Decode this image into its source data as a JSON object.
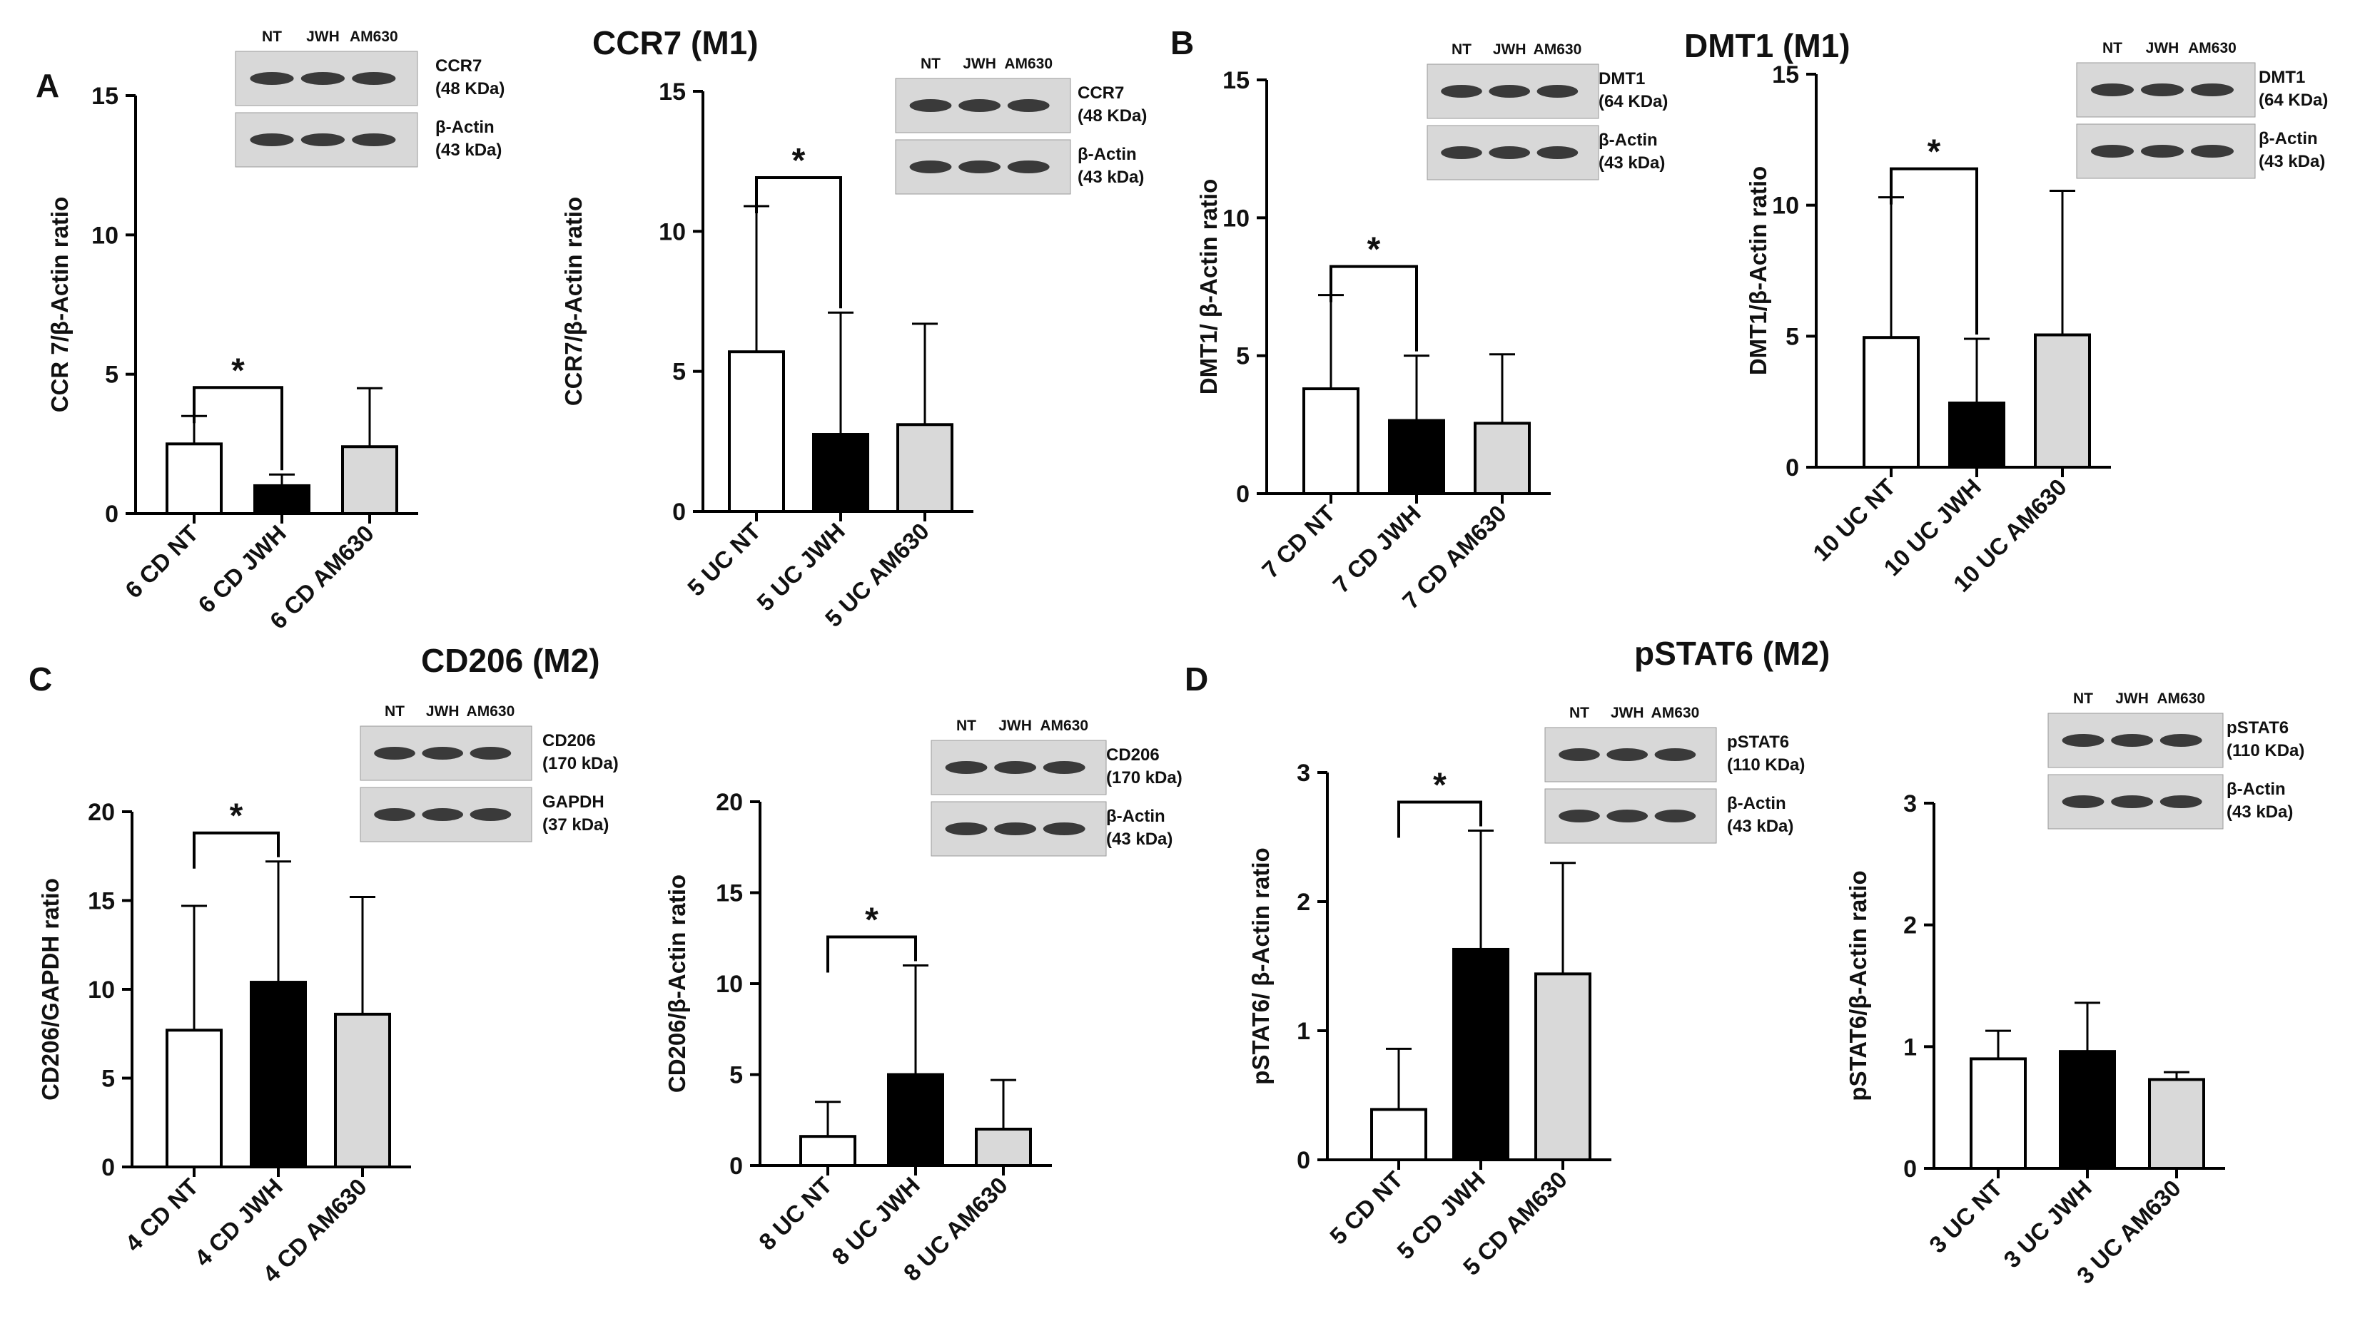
{
  "panel_letters": [
    "A",
    "B",
    "C",
    "D"
  ],
  "panel_titles": [
    "CCR7 (M1)",
    "DMT1 (M1)",
    "CD206 (M2)",
    "pSTAT6 (M2)"
  ],
  "colors": {
    "NT": "#ffffff",
    "JWH": "#000000",
    "AM630": "#d9d9d9",
    "stroke": "#000000"
  },
  "chart_data": [
    {
      "type": "bar",
      "categories": [
        "6 CD NT",
        "6 CD JWH",
        "6 CD AM630"
      ],
      "values": [
        2.5,
        1.0,
        2.4
      ],
      "errors": [
        1.0,
        0.4,
        2.1
      ],
      "ylabel": "CCR 7/β-Actin ratio",
      "ylim": [
        0,
        15
      ],
      "yticks": [
        0,
        5,
        10,
        15
      ],
      "significance": {
        "from": 0,
        "to": 1,
        "label": "*"
      },
      "blot": {
        "lanes": [
          "NT",
          "JWH",
          "AM630"
        ],
        "bands": [
          {
            "name": "CCR7",
            "size": "(48 KDa)"
          },
          {
            "name": "β-Actin",
            "size": "(43 kDa)"
          }
        ]
      }
    },
    {
      "type": "bar",
      "categories": [
        "5 UC NT",
        "5 UC JWH",
        "5 UC AM630"
      ],
      "values": [
        5.7,
        2.75,
        3.1
      ],
      "errors": [
        5.2,
        4.35,
        3.6
      ],
      "ylabel": "CCR7/β-Actin ratio",
      "ylim": [
        0,
        15
      ],
      "yticks": [
        0,
        5,
        10,
        15
      ],
      "significance": {
        "from": 0,
        "to": 1,
        "label": "*"
      },
      "blot": {
        "lanes": [
          "NT",
          "JWH",
          "AM630"
        ],
        "bands": [
          {
            "name": "CCR7",
            "size": "(48 KDa)"
          },
          {
            "name": "β-Actin",
            "size": "(43 kDa)"
          }
        ]
      }
    },
    {
      "type": "bar",
      "categories": [
        "7 CD NT",
        "7 CD JWH",
        "7 CD AM630"
      ],
      "values": [
        3.8,
        2.65,
        2.55
      ],
      "errors": [
        3.4,
        2.35,
        2.5
      ],
      "ylabel": "DMT1/ β-Actin ratio",
      "ylim": [
        0,
        15
      ],
      "yticks": [
        0,
        5,
        10,
        15
      ],
      "significance": {
        "from": 0,
        "to": 1,
        "label": "*"
      },
      "blot": {
        "lanes": [
          "NT",
          "JWH",
          "AM630"
        ],
        "bands": [
          {
            "name": "DMT1",
            "size": "(64 KDa)"
          },
          {
            "name": "β-Actin",
            "size": "(43 kDa)"
          }
        ]
      }
    },
    {
      "type": "bar",
      "categories": [
        "10 UC NT",
        "10 UC JWH",
        "10 UC AM630"
      ],
      "values": [
        4.95,
        2.45,
        5.05
      ],
      "errors": [
        5.35,
        2.45,
        5.5
      ],
      "ylabel": "DMT1/β-Actin ratio",
      "ylim": [
        0,
        15
      ],
      "yticks": [
        0,
        5,
        10,
        15
      ],
      "significance": {
        "from": 0,
        "to": 1,
        "label": "*"
      },
      "blot": {
        "lanes": [
          "NT",
          "JWH",
          "AM630"
        ],
        "bands": [
          {
            "name": "DMT1",
            "size": "(64 KDa)"
          },
          {
            "name": "β-Actin",
            "size": "(43 kDa)"
          }
        ]
      }
    },
    {
      "type": "bar",
      "categories": [
        "4 CD NT",
        "4 CD JWH",
        "4 CD AM630"
      ],
      "values": [
        7.7,
        10.4,
        8.6
      ],
      "errors": [
        7.0,
        6.8,
        6.6
      ],
      "ylabel": "CD206/GAPDH ratio",
      "ylim": [
        0,
        20
      ],
      "yticks": [
        0,
        5,
        10,
        15,
        20
      ],
      "significance": {
        "from": 0,
        "to": 1,
        "label": "*"
      },
      "blot": {
        "lanes": [
          "NT",
          "JWH",
          "AM630"
        ],
        "bands": [
          {
            "name": "CD206",
            "size": "(170 kDa)"
          },
          {
            "name": "GAPDH",
            "size": "(37 kDa)"
          }
        ]
      }
    },
    {
      "type": "bar",
      "categories": [
        "8 UC NT",
        "8 UC JWH",
        "8 UC AM630"
      ],
      "values": [
        1.6,
        5.0,
        2.0
      ],
      "errors": [
        1.9,
        6.0,
        2.7
      ],
      "ylabel": "CD206/β-Actin ratio",
      "ylim": [
        0,
        20
      ],
      "yticks": [
        0,
        5,
        10,
        15,
        20
      ],
      "significance": {
        "from": 0,
        "to": 1,
        "label": "*"
      },
      "blot": {
        "lanes": [
          "NT",
          "JWH",
          "AM630"
        ],
        "bands": [
          {
            "name": "CD206",
            "size": "(170 kDa)"
          },
          {
            "name": "β-Actin",
            "size": "(43 kDa)"
          }
        ]
      }
    },
    {
      "type": "bar",
      "categories": [
        "5 CD NT",
        "5 CD JWH",
        "5 CD AM630"
      ],
      "values": [
        0.39,
        1.63,
        1.44
      ],
      "errors": [
        0.47,
        0.92,
        0.86
      ],
      "ylabel": "pSTAT6/ β-Actin ratio",
      "ylim": [
        0,
        3
      ],
      "yticks": [
        0,
        1,
        2,
        3
      ],
      "significance": {
        "from": 0,
        "to": 1,
        "label": "*"
      },
      "blot": {
        "lanes": [
          "NT",
          "JWH",
          "AM630"
        ],
        "bands": [
          {
            "name": "pSTAT6",
            "size": "(110 KDa)"
          },
          {
            "name": "β-Actin",
            "size": "(43 kDa)"
          }
        ]
      }
    },
    {
      "type": "bar",
      "categories": [
        "3 UC NT",
        "3 UC JWH",
        "3 UC AM630"
      ],
      "values": [
        0.9,
        0.96,
        0.73
      ],
      "errors": [
        0.23,
        0.4,
        0.06
      ],
      "ylabel": "pSTAT6/β-Actin ratio",
      "ylim": [
        0,
        3
      ],
      "yticks": [
        0,
        1,
        2,
        3
      ],
      "significance": null,
      "blot": {
        "lanes": [
          "NT",
          "JWH",
          "AM630"
        ],
        "bands": [
          {
            "name": "pSTAT6",
            "size": "(110 KDa)"
          },
          {
            "name": "β-Actin",
            "size": "(43 kDa)"
          }
        ]
      }
    }
  ]
}
